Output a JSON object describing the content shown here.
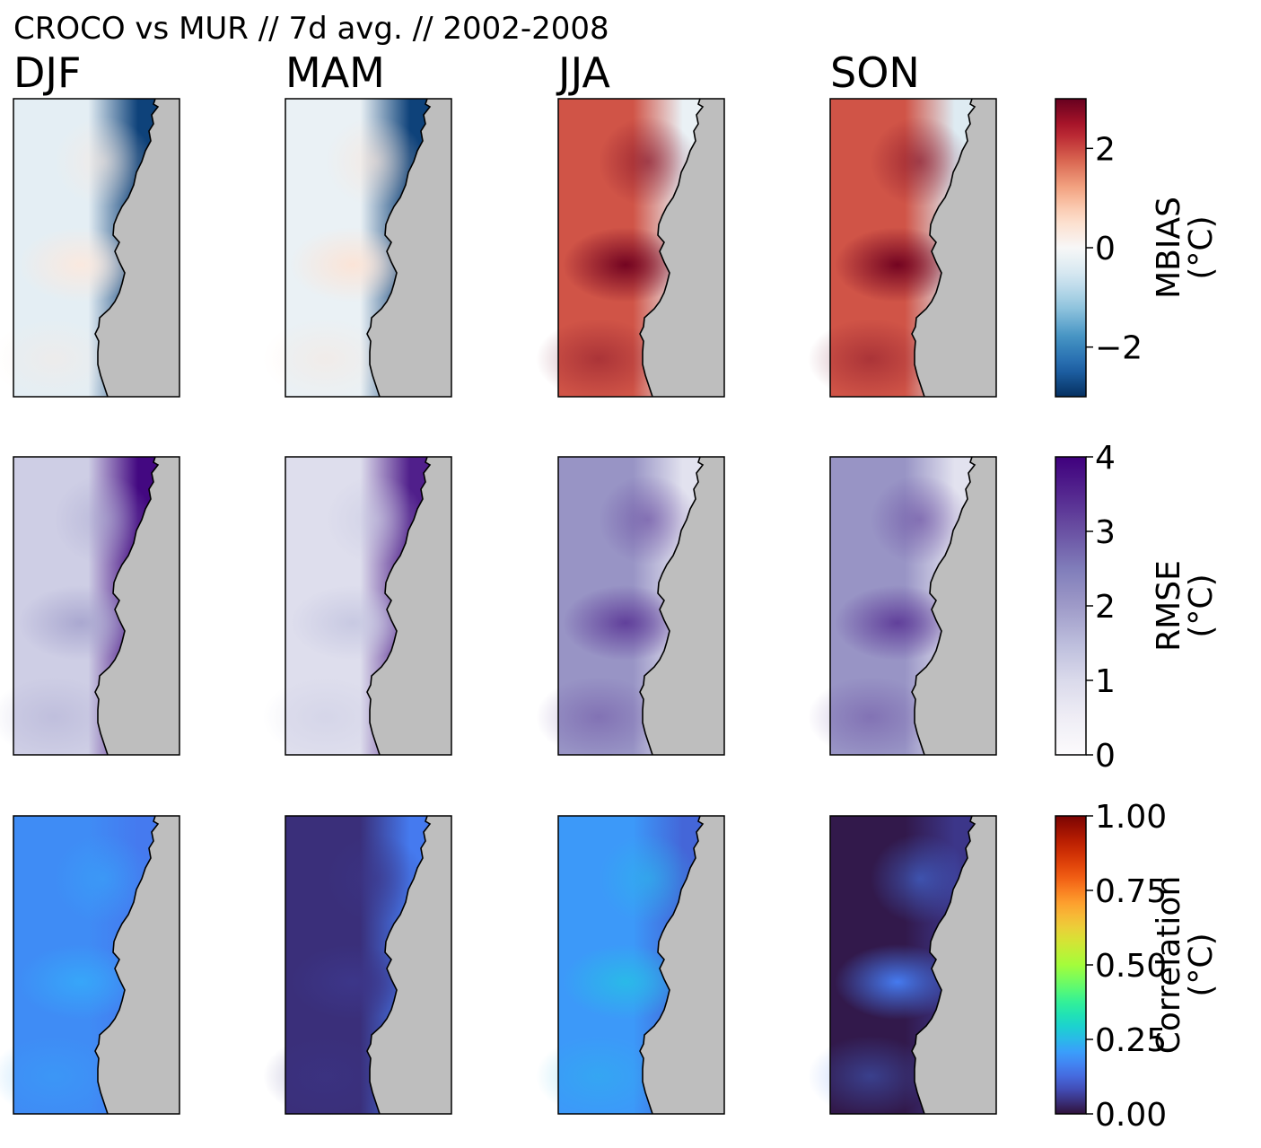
{
  "figure": {
    "title": "CROCO vs MUR // 7d avg. // 2002-2008"
  },
  "chart_data": {
    "type": "heatmap",
    "columns": [
      "DJF",
      "MAM",
      "JJA",
      "SON"
    ],
    "land_color": "#bebebe",
    "coast_color": "#000000",
    "rows": [
      {
        "metric": "MBIAS",
        "cbar_label": "MBIAS",
        "cbar_unit": "(°C)",
        "colormap": "RdBu_r",
        "vmin": -3,
        "vmax": 3,
        "ticks": [
          -2,
          0,
          2
        ],
        "tick_labels": [
          "−2",
          "0",
          "2"
        ],
        "panels": {
          "DJF": {
            "offshore_mean": -0.3,
            "coastal": -2.8,
            "eddy_core": 0.3
          },
          "MAM": {
            "offshore_mean": -0.2,
            "coastal": -2.8,
            "eddy_core": 0.4
          },
          "JJA": {
            "offshore_mean": 1.9,
            "coastal": -0.2,
            "eddy_core": 2.9
          },
          "SON": {
            "offshore_mean": 1.9,
            "coastal": -0.4,
            "eddy_core": 2.9
          }
        }
      },
      {
        "metric": "RMSE",
        "cbar_label": "RMSE",
        "cbar_unit": "(°C)",
        "colormap": "Purples",
        "vmin": 0,
        "vmax": 4,
        "ticks": [
          0,
          1,
          2,
          3,
          4
        ],
        "tick_labels": [
          "0",
          "1",
          "2",
          "3",
          "4"
        ],
        "panels": {
          "DJF": {
            "offshore_mean": 1.2,
            "coastal": 3.9,
            "eddy_core": 1.8
          },
          "MAM": {
            "offshore_mean": 0.9,
            "coastal": 3.6,
            "eddy_core": 1.3
          },
          "JJA": {
            "offshore_mean": 2.1,
            "coastal": 0.8,
            "eddy_core": 3.2
          },
          "SON": {
            "offshore_mean": 2.1,
            "coastal": 0.8,
            "eddy_core": 3.2
          }
        }
      },
      {
        "metric": "Correlation",
        "cbar_label": "Correlation",
        "cbar_unit": "(°C)",
        "colormap": "turbo",
        "vmin": 0,
        "vmax": 1,
        "ticks": [
          0,
          0.25,
          0.5,
          0.75,
          1
        ],
        "tick_labels": [
          "0.00",
          "0.25",
          "0.50",
          "0.75",
          "1.00"
        ],
        "panels": {
          "DJF": {
            "offshore_mean": 0.18,
            "coastal": 0.15,
            "eddy_core": 0.22
          },
          "MAM": {
            "offshore_mean": 0.04,
            "coastal": 0.15,
            "eddy_core": 0.05
          },
          "JJA": {
            "offshore_mean": 0.2,
            "coastal": 0.12,
            "eddy_core": 0.25
          },
          "SON": {
            "offshore_mean": 0.01,
            "coastal": 0.05,
            "eddy_core": 0.15
          }
        }
      }
    ]
  }
}
